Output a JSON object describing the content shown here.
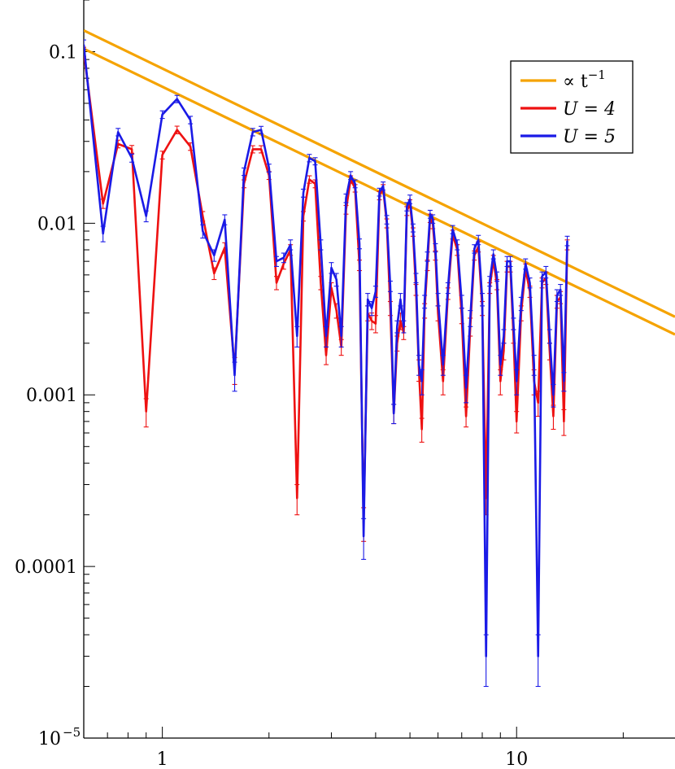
{
  "chart_data": {
    "type": "line",
    "x_scale": "log",
    "y_scale": "log",
    "xlim": [
      0.6,
      28
    ],
    "ylim": [
      1e-05,
      0.2
    ],
    "x_tick_labels": [
      {
        "value": 1,
        "label": "1"
      },
      {
        "value": 10,
        "label": "10"
      }
    ],
    "y_tick_labels": [
      {
        "value": 0.1,
        "label": "0.1"
      },
      {
        "value": 0.01,
        "label": "0.01"
      },
      {
        "value": 0.001,
        "label": "0.001"
      },
      {
        "value": 0.0001,
        "label": "0.0001"
      },
      {
        "value": 1e-05,
        "label": "10",
        "exponent": "−5"
      }
    ],
    "legend_position": "top-right",
    "series": [
      {
        "name": "∝ t",
        "name_superscript": "−1",
        "color": "#f5a300",
        "kind": "reference",
        "x": [
          0.6,
          28
        ],
        "y": [
          0.133,
          0.00285
        ]
      },
      {
        "name": "∝ t",
        "name_superscript": "−1",
        "color": "#f5a300",
        "kind": "reference",
        "x": [
          0.6,
          28
        ],
        "y": [
          0.104,
          0.00225
        ]
      },
      {
        "name": "U = 4",
        "color": "#ee1111",
        "kind": "data",
        "x": [
          0.6,
          0.68,
          0.75,
          0.82,
          0.9,
          1.0,
          1.1,
          1.2,
          1.3,
          1.4,
          1.5,
          1.6,
          1.7,
          1.8,
          1.9,
          2.0,
          2.1,
          2.2,
          2.3,
          2.4,
          2.5,
          2.6,
          2.7,
          2.8,
          2.9,
          3.0,
          3.1,
          3.2,
          3.3,
          3.4,
          3.5,
          3.6,
          3.7,
          3.8,
          3.9,
          4.0,
          4.1,
          4.2,
          4.3,
          4.4,
          4.5,
          4.6,
          4.7,
          4.8,
          4.9,
          5.0,
          5.1,
          5.2,
          5.3,
          5.4,
          5.5,
          5.6,
          5.7,
          5.8,
          5.9,
          6.0,
          6.2,
          6.4,
          6.6,
          6.8,
          7.0,
          7.2,
          7.4,
          7.6,
          7.8,
          8.0,
          8.2,
          8.4,
          8.6,
          8.8,
          9.0,
          9.2,
          9.4,
          9.6,
          9.8,
          10.0,
          10.3,
          10.6,
          10.9,
          11.2,
          11.5,
          11.8,
          12.1,
          12.4,
          12.7,
          13.0,
          13.3,
          13.6,
          13.9
        ],
        "y": [
          0.1,
          0.013,
          0.029,
          0.027,
          0.0008,
          0.025,
          0.035,
          0.028,
          0.011,
          0.0051,
          0.0072,
          0.0014,
          0.017,
          0.027,
          0.027,
          0.019,
          0.0045,
          0.0058,
          0.007,
          0.00025,
          0.011,
          0.018,
          0.017,
          0.0045,
          0.0017,
          0.0042,
          0.0031,
          0.0019,
          0.012,
          0.018,
          0.016,
          0.0057,
          0.00018,
          0.003,
          0.0027,
          0.0026,
          0.0145,
          0.016,
          0.01,
          0.0032,
          0.00078,
          0.002,
          0.0027,
          0.0023,
          0.0118,
          0.013,
          0.0089,
          0.0041,
          0.0014,
          0.00063,
          0.0031,
          0.0057,
          0.0107,
          0.0099,
          0.0065,
          0.003,
          0.0012,
          0.0039,
          0.0086,
          0.007,
          0.0029,
          0.00075,
          0.0025,
          0.0065,
          0.0073,
          0.0032,
          0.00025,
          0.0042,
          0.0061,
          0.0044,
          0.0012,
          0.0018,
          0.0056,
          0.0056,
          0.0022,
          0.0007,
          0.003,
          0.0054,
          0.004,
          0.0012,
          0.0009,
          0.0045,
          0.0048,
          0.0018,
          0.00075,
          0.0035,
          0.0037,
          0.0007,
          0.0075
        ],
        "error": [
          0.006,
          0.0008,
          0.0015,
          0.0014,
          0.00015,
          0.0013,
          0.0018,
          0.0014,
          0.0007,
          0.0004,
          0.0005,
          0.00025,
          0.0009,
          0.0013,
          0.0013,
          0.001,
          0.0004,
          0.0004,
          0.0005,
          5e-05,
          0.0007,
          0.0009,
          0.0009,
          0.0004,
          0.0002,
          0.0003,
          0.0003,
          0.0002,
          0.0007,
          0.0009,
          0.0008,
          0.0004,
          4e-05,
          0.0003,
          0.0003,
          0.0003,
          0.0008,
          0.0008,
          0.0006,
          0.0003,
          0.0001,
          0.0002,
          0.0003,
          0.0002,
          0.0007,
          0.0007,
          0.0005,
          0.0003,
          0.0002,
          0.0001,
          0.0003,
          0.0004,
          0.0006,
          0.0006,
          0.0004,
          0.0003,
          0.0002,
          0.0003,
          0.0005,
          0.0005,
          0.0003,
          0.0001,
          0.0003,
          0.0004,
          0.0005,
          0.0003,
          5e-05,
          0.0003,
          0.0004,
          0.0003,
          0.0002,
          0.0002,
          0.0004,
          0.0004,
          0.0002,
          0.0001,
          0.0003,
          0.0004,
          0.0003,
          0.0002,
          0.00015,
          0.0003,
          0.0004,
          0.0002,
          0.00012,
          0.0003,
          0.0003,
          0.00012,
          0.0005
        ]
      },
      {
        "name": "U = 5",
        "color": "#1a1ae6",
        "kind": "data",
        "x": [
          0.6,
          0.68,
          0.75,
          0.82,
          0.9,
          1.0,
          1.1,
          1.2,
          1.3,
          1.4,
          1.5,
          1.6,
          1.7,
          1.8,
          1.9,
          2.0,
          2.1,
          2.2,
          2.3,
          2.4,
          2.5,
          2.6,
          2.7,
          2.8,
          2.9,
          3.0,
          3.1,
          3.2,
          3.3,
          3.4,
          3.5,
          3.6,
          3.7,
          3.8,
          3.9,
          4.0,
          4.1,
          4.2,
          4.3,
          4.4,
          4.5,
          4.6,
          4.7,
          4.8,
          4.9,
          5.0,
          5.1,
          5.2,
          5.3,
          5.4,
          5.5,
          5.6,
          5.7,
          5.8,
          5.9,
          6.0,
          6.2,
          6.4,
          6.6,
          6.8,
          7.0,
          7.2,
          7.4,
          7.6,
          7.8,
          8.0,
          8.2,
          8.4,
          8.6,
          8.8,
          9.0,
          9.2,
          9.4,
          9.6,
          9.8,
          10.0,
          10.3,
          10.6,
          10.9,
          11.2,
          11.5,
          11.8,
          12.1,
          12.4,
          12.7,
          13.0,
          13.3,
          13.6,
          13.9
        ],
        "y": [
          0.11,
          0.0087,
          0.034,
          0.024,
          0.011,
          0.043,
          0.053,
          0.04,
          0.009,
          0.0065,
          0.0105,
          0.0013,
          0.02,
          0.034,
          0.035,
          0.021,
          0.006,
          0.0063,
          0.0075,
          0.0022,
          0.015,
          0.024,
          0.023,
          0.0075,
          0.0022,
          0.0055,
          0.0047,
          0.0022,
          0.014,
          0.019,
          0.017,
          0.0076,
          0.00015,
          0.0036,
          0.0032,
          0.004,
          0.0152,
          0.0165,
          0.0105,
          0.0043,
          0.00078,
          0.0025,
          0.0036,
          0.0025,
          0.0125,
          0.0138,
          0.0094,
          0.0048,
          0.0015,
          0.0012,
          0.0035,
          0.0064,
          0.0113,
          0.0106,
          0.0072,
          0.0036,
          0.0015,
          0.0042,
          0.0092,
          0.0075,
          0.0035,
          0.0011,
          0.0028,
          0.0071,
          0.008,
          0.0036,
          3e-05,
          0.0046,
          0.0066,
          0.0049,
          0.0015,
          0.0022,
          0.006,
          0.006,
          0.0026,
          0.0012,
          0.0034,
          0.0058,
          0.0045,
          0.0015,
          3e-05,
          0.0049,
          0.0052,
          0.0022,
          0.001,
          0.0038,
          0.0041,
          0.0012,
          0.0079
        ],
        "error": [
          0.007,
          0.0009,
          0.0017,
          0.0013,
          0.0008,
          0.0022,
          0.0026,
          0.002,
          0.0008,
          0.0005,
          0.0007,
          0.00025,
          0.001,
          0.0017,
          0.0017,
          0.0011,
          0.0004,
          0.0004,
          0.0005,
          0.0003,
          0.0008,
          0.0012,
          0.0011,
          0.0005,
          0.0003,
          0.0004,
          0.0004,
          0.0003,
          0.0008,
          0.001,
          0.0009,
          0.0005,
          4e-05,
          0.0003,
          0.0003,
          0.0003,
          0.0008,
          0.0009,
          0.0006,
          0.0003,
          0.0001,
          0.0002,
          0.0003,
          0.0002,
          0.0007,
          0.0008,
          0.0005,
          0.0003,
          0.0002,
          0.0002,
          0.0003,
          0.0004,
          0.0006,
          0.0006,
          0.0004,
          0.0003,
          0.0002,
          0.0003,
          0.0005,
          0.0005,
          0.0003,
          0.0002,
          0.0003,
          0.0004,
          0.0005,
          0.0003,
          1e-05,
          0.0003,
          0.0004,
          0.0003,
          0.0002,
          0.0002,
          0.0004,
          0.0004,
          0.0002,
          0.0002,
          0.0003,
          0.0004,
          0.0003,
          0.0002,
          1e-05,
          0.0003,
          0.0004,
          0.0002,
          0.00015,
          0.0003,
          0.0003,
          0.00015,
          0.0005
        ]
      }
    ],
    "legend": [
      {
        "label": "∝ t",
        "superscript": "−1",
        "color": "#f5a300"
      },
      {
        "label": "U = 4",
        "color": "#ee1111"
      },
      {
        "label": "U = 5",
        "color": "#1a1ae6"
      }
    ]
  }
}
